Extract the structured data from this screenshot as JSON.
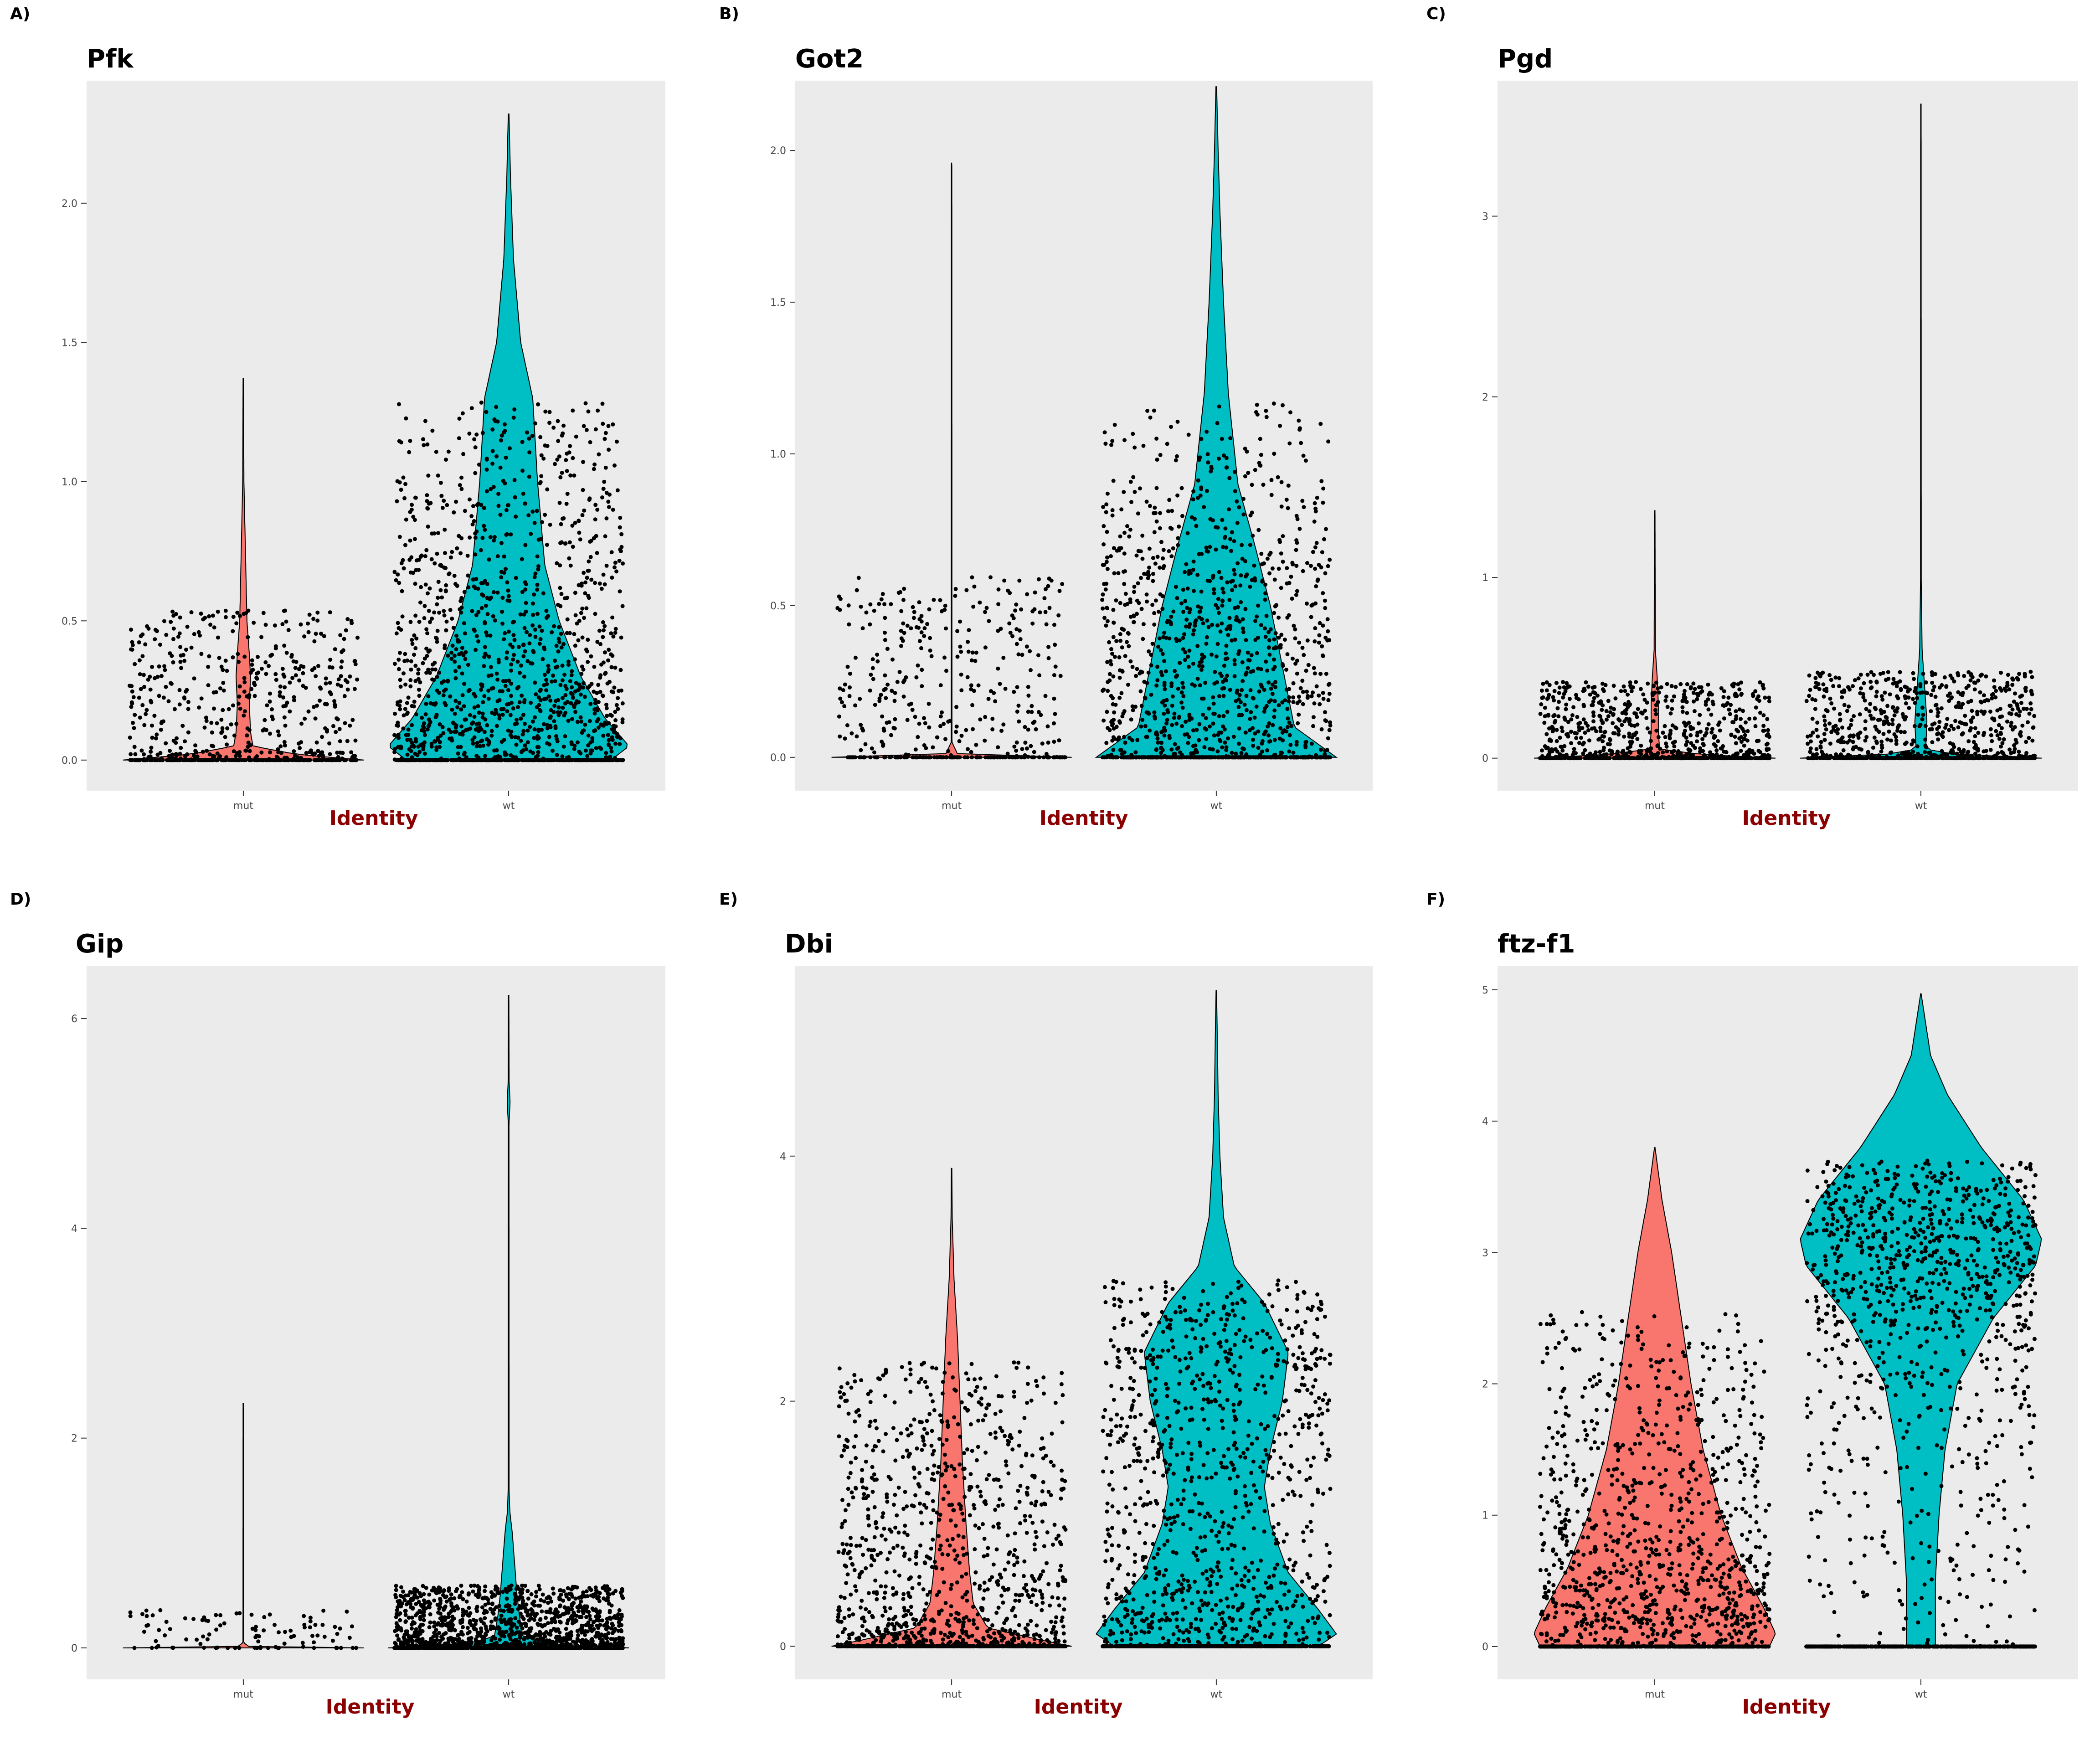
{
  "figure": {
    "colors": {
      "mut": "#F8766D",
      "wt": "#00BFC4",
      "panel_bg": "#EBEBEB",
      "points": "#000000",
      "axis_title": "#8B0000"
    }
  },
  "chart_data": [
    {
      "type": "violin",
      "panel_label": "A)",
      "title": "Pfk",
      "xlabel": "Identity",
      "ylabel": "",
      "categories": [
        "mut",
        "wt"
      ],
      "ylim": [
        -0.11,
        2.44
      ],
      "yticks": [
        0.0,
        0.5,
        1.0,
        1.5,
        2.0
      ],
      "ytick_labels": [
        "0.0",
        "0.5",
        "1.0",
        "1.5",
        "2.0"
      ],
      "series": [
        {
          "name": "mut",
          "color": "#F8766D",
          "max": 1.37,
          "profile": [
            [
              0,
              1
            ],
            [
              0.02,
              0.45
            ],
            [
              0.05,
              0.08
            ],
            [
              0.1,
              0.06
            ],
            [
              0.2,
              0.05
            ],
            [
              0.3,
              0.06
            ],
            [
              0.38,
              0.05
            ],
            [
              0.5,
              0.03
            ],
            [
              0.7,
              0.02
            ],
            [
              1.0,
              0.005
            ],
            [
              1.37,
              0.002
            ]
          ]
        },
        {
          "name": "wt",
          "color": "#00BFC4",
          "max": 2.32,
          "profile": [
            [
              0,
              0.85
            ],
            [
              0.05,
              1.0
            ],
            [
              0.15,
              0.8
            ],
            [
              0.3,
              0.6
            ],
            [
              0.5,
              0.42
            ],
            [
              0.7,
              0.3
            ],
            [
              1.0,
              0.24
            ],
            [
              1.3,
              0.2
            ],
            [
              1.5,
              0.1
            ],
            [
              1.8,
              0.04
            ],
            [
              2.1,
              0.015
            ],
            [
              2.32,
              0.003
            ]
          ]
        }
      ],
      "points_note_counts": {
        "mut": 700,
        "wt": 1600
      },
      "point_spread": {
        "mut": 0.45,
        "wt": 1.1
      }
    },
    {
      "type": "violin",
      "panel_label": "B)",
      "title": "Got2",
      "xlabel": "Identity",
      "ylabel": "",
      "categories": [
        "mut",
        "wt"
      ],
      "ylim": [
        -0.11,
        2.23
      ],
      "yticks": [
        0.0,
        0.5,
        1.0,
        1.5,
        2.0
      ],
      "ytick_labels": [
        "0.0",
        "0.5",
        "1.0",
        "1.5",
        "2.0"
      ],
      "series": [
        {
          "name": "mut",
          "color": "#F8766D",
          "max": 1.96,
          "profile": [
            [
              0,
              1
            ],
            [
              0.01,
              0.05
            ],
            [
              0.05,
              0.003
            ],
            [
              1.96,
              0.002
            ]
          ]
        },
        {
          "name": "wt",
          "color": "#00BFC4",
          "max": 2.21,
          "profile": [
            [
              0,
              1
            ],
            [
              0.1,
              0.65
            ],
            [
              0.3,
              0.55
            ],
            [
              0.5,
              0.45
            ],
            [
              0.7,
              0.32
            ],
            [
              0.9,
              0.18
            ],
            [
              1.2,
              0.1
            ],
            [
              1.5,
              0.06
            ],
            [
              1.8,
              0.03
            ],
            [
              2.0,
              0.015
            ],
            [
              2.21,
              0.003
            ]
          ]
        }
      ],
      "points_note_counts": {
        "mut": 450,
        "wt": 1400
      },
      "point_spread": {
        "mut": 0.5,
        "wt": 1.0
      }
    },
    {
      "type": "violin",
      "panel_label": "C)",
      "title": "Pgd",
      "xlabel": "Identity",
      "ylabel": "",
      "categories": [
        "mut",
        "wt"
      ],
      "ylim": [
        -0.18,
        3.75
      ],
      "yticks": [
        0,
        1,
        2,
        3
      ],
      "ytick_labels": [
        "0",
        "1",
        "2",
        "3"
      ],
      "series": [
        {
          "name": "mut",
          "color": "#F8766D",
          "max": 1.37,
          "profile": [
            [
              0,
              1
            ],
            [
              0.02,
              0.4
            ],
            [
              0.05,
              0.04
            ],
            [
              0.15,
              0.03
            ],
            [
              0.3,
              0.03
            ],
            [
              0.45,
              0.02
            ],
            [
              0.6,
              0.005
            ],
            [
              1.37,
              0.002
            ]
          ]
        },
        {
          "name": "wt",
          "color": "#00BFC4",
          "max": 3.62,
          "profile": [
            [
              0,
              1
            ],
            [
              0.02,
              0.3
            ],
            [
              0.05,
              0.04
            ],
            [
              0.2,
              0.05
            ],
            [
              0.4,
              0.03
            ],
            [
              0.6,
              0.01
            ],
            [
              1.0,
              0.003
            ],
            [
              3.62,
              0.002
            ]
          ]
        }
      ],
      "points_note_counts": {
        "mut": 900,
        "wt": 900
      },
      "point_spread": {
        "mut": 0.35,
        "wt": 0.4
      }
    },
    {
      "type": "violin",
      "panel_label": "D)",
      "title": "Gip",
      "xlabel": "Identity",
      "ylabel": "",
      "categories": [
        "mut",
        "wt"
      ],
      "ylim": [
        -0.3,
        6.5
      ],
      "yticks": [
        0,
        2,
        4,
        6
      ],
      "ytick_labels": [
        "0",
        "2",
        "4",
        "6"
      ],
      "series": [
        {
          "name": "mut",
          "color": "#F8766D",
          "max": 2.33,
          "profile": [
            [
              0,
              1
            ],
            [
              0.01,
              0.05
            ],
            [
              0.05,
              0.003
            ],
            [
              2.33,
              0.002
            ]
          ]
        },
        {
          "name": "wt",
          "color": "#00BFC4",
          "max": 6.22,
          "profile": [
            [
              0,
              1
            ],
            [
              0.03,
              0.4
            ],
            [
              0.1,
              0.12
            ],
            [
              0.3,
              0.09
            ],
            [
              0.5,
              0.07
            ],
            [
              0.8,
              0.05
            ],
            [
              1.1,
              0.03
            ],
            [
              1.3,
              0.01
            ],
            [
              1.5,
              0.004
            ],
            [
              5.0,
              0.003
            ],
            [
              5.2,
              0.012
            ],
            [
              5.4,
              0.004
            ],
            [
              6.22,
              0.002
            ]
          ]
        }
      ],
      "points_note_counts": {
        "mut": 100,
        "wt": 1700
      },
      "point_spread": {
        "mut": 0.3,
        "wt": 0.5
      }
    },
    {
      "type": "violin",
      "panel_label": "E)",
      "title": "Dbi",
      "xlabel": "Identity",
      "ylabel": "",
      "categories": [
        "mut",
        "wt"
      ],
      "ylim": [
        -0.27,
        5.55
      ],
      "yticks": [
        0,
        2,
        4
      ],
      "ytick_labels": [
        "0",
        "2",
        "4"
      ],
      "series": [
        {
          "name": "mut",
          "color": "#F8766D",
          "max": 3.9,
          "profile": [
            [
              0,
              1
            ],
            [
              0.05,
              0.75
            ],
            [
              0.15,
              0.3
            ],
            [
              0.35,
              0.18
            ],
            [
              0.6,
              0.15
            ],
            [
              1.0,
              0.12
            ],
            [
              1.5,
              0.09
            ],
            [
              2.0,
              0.07
            ],
            [
              2.5,
              0.05
            ],
            [
              3.0,
              0.02
            ],
            [
              3.5,
              0.005
            ],
            [
              3.9,
              0.002
            ]
          ]
        },
        {
          "name": "wt",
          "color": "#00BFC4",
          "max": 5.35,
          "profile": [
            [
              0,
              0.85
            ],
            [
              0.1,
              1.0
            ],
            [
              0.3,
              0.85
            ],
            [
              0.6,
              0.6
            ],
            [
              1.0,
              0.45
            ],
            [
              1.3,
              0.4
            ],
            [
              1.6,
              0.45
            ],
            [
              2.0,
              0.55
            ],
            [
              2.4,
              0.6
            ],
            [
              2.8,
              0.4
            ],
            [
              3.1,
              0.15
            ],
            [
              3.5,
              0.06
            ],
            [
              4.0,
              0.03
            ],
            [
              4.5,
              0.015
            ],
            [
              5.0,
              0.008
            ],
            [
              5.35,
              0.002
            ]
          ]
        }
      ],
      "points_note_counts": {
        "mut": 1300,
        "wt": 1400
      },
      "point_spread": {
        "mut": 2.0,
        "wt": 2.6
      }
    },
    {
      "type": "violin",
      "panel_label": "F)",
      "title": "ftz-f1",
      "xlabel": "Identity",
      "ylabel": "",
      "categories": [
        "mut",
        "wt"
      ],
      "ylim": [
        -0.25,
        5.18
      ],
      "yticks": [
        0,
        1,
        2,
        3,
        4,
        5
      ],
      "ytick_labels": [
        "0",
        "1",
        "2",
        "3",
        "4",
        "5"
      ],
      "series": [
        {
          "name": "mut",
          "color": "#F8766D",
          "max": 3.8,
          "profile": [
            [
              0,
              0.95
            ],
            [
              0.1,
              1.0
            ],
            [
              0.3,
              0.9
            ],
            [
              0.6,
              0.72
            ],
            [
              1.0,
              0.55
            ],
            [
              1.5,
              0.4
            ],
            [
              2.0,
              0.3
            ],
            [
              2.5,
              0.22
            ],
            [
              3.0,
              0.14
            ],
            [
              3.4,
              0.06
            ],
            [
              3.8,
              0.002
            ]
          ]
        },
        {
          "name": "wt",
          "color": "#00BFC4",
          "max": 4.97,
          "profile": [
            [
              0,
              0.12
            ],
            [
              0.5,
              0.12
            ],
            [
              1.0,
              0.15
            ],
            [
              1.5,
              0.2
            ],
            [
              2.0,
              0.3
            ],
            [
              2.5,
              0.6
            ],
            [
              2.9,
              0.95
            ],
            [
              3.1,
              1.0
            ],
            [
              3.4,
              0.85
            ],
            [
              3.8,
              0.5
            ],
            [
              4.2,
              0.22
            ],
            [
              4.5,
              0.08
            ],
            [
              4.97,
              0.002
            ]
          ]
        }
      ],
      "points_note_counts": {
        "mut": 1400,
        "wt": 1400
      },
      "point_spread": {
        "mut": 2.2,
        "wt": 3.2
      }
    }
  ]
}
